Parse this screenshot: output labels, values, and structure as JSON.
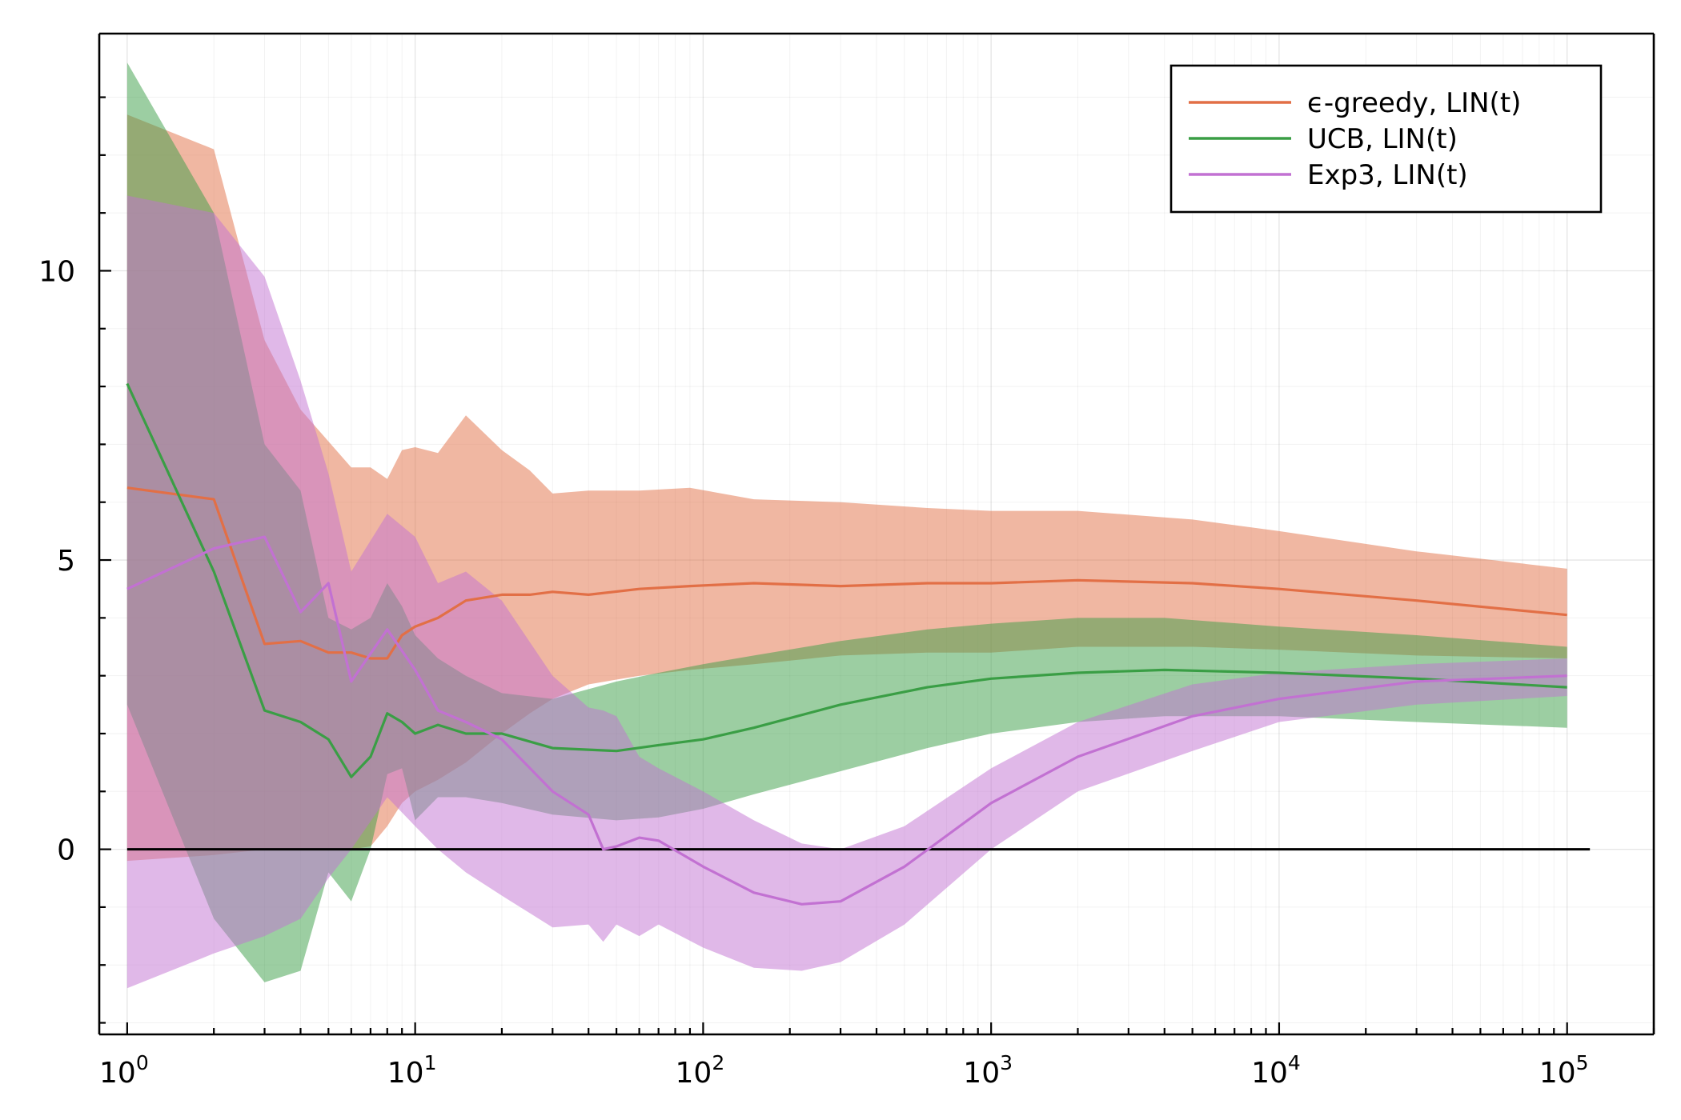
{
  "chart_data": {
    "type": "line",
    "title": "",
    "xlabel": "",
    "ylabel": "",
    "xscale": "log10",
    "xlim": [
      0.8,
      200000
    ],
    "ylim": [
      -3.2,
      14.1
    ],
    "grid": true,
    "legend_position": "top-right",
    "x_ticks": [
      {
        "x": 1,
        "base": "10",
        "exp": "0"
      },
      {
        "x": 10,
        "base": "10",
        "exp": "1"
      },
      {
        "x": 100,
        "base": "10",
        "exp": "2"
      },
      {
        "x": 1000,
        "base": "10",
        "exp": "3"
      },
      {
        "x": 10000,
        "base": "10",
        "exp": "4"
      },
      {
        "x": 100000,
        "base": "10",
        "exp": "5"
      }
    ],
    "y_ticks": [
      {
        "y": 0,
        "label": "0"
      },
      {
        "y": 5,
        "label": "5"
      },
      {
        "y": 10,
        "label": "10"
      }
    ],
    "reference_line": {
      "y": 0,
      "color": "#000000"
    },
    "series": [
      {
        "name": "ϵ-greedy, LIN(t)",
        "color": "#e26f46",
        "x": [
          1,
          2,
          3,
          4,
          5,
          6,
          7,
          8,
          9,
          10,
          12,
          15,
          20,
          25,
          30,
          40,
          60,
          90,
          150,
          300,
          600,
          1000,
          2000,
          5000,
          10000,
          30000,
          100000
        ],
        "y": [
          6.25,
          6.05,
          3.55,
          3.6,
          3.4,
          3.4,
          3.3,
          3.3,
          3.7,
          3.85,
          4.0,
          4.3,
          4.4,
          4.4,
          4.45,
          4.4,
          4.5,
          4.55,
          4.6,
          4.55,
          4.6,
          4.6,
          4.65,
          4.6,
          4.5,
          4.3,
          4.05
        ],
        "upper": [
          12.7,
          12.1,
          8.8,
          7.6,
          7.05,
          6.6,
          6.6,
          6.4,
          6.9,
          6.95,
          6.85,
          7.5,
          6.9,
          6.55,
          6.15,
          6.2,
          6.2,
          6.25,
          6.05,
          6.0,
          5.9,
          5.85,
          5.85,
          5.7,
          5.5,
          5.15,
          4.85
        ],
        "lower": [
          -0.2,
          -0.1,
          0.0,
          0.0,
          0.0,
          0.0,
          0.05,
          0.4,
          0.8,
          1.0,
          1.2,
          1.5,
          2.0,
          2.35,
          2.6,
          2.85,
          3.0,
          3.1,
          3.2,
          3.35,
          3.4,
          3.4,
          3.5,
          3.5,
          3.45,
          3.35,
          3.3
        ]
      },
      {
        "name": "UCB, LIN(t)",
        "color": "#3a9e45",
        "x": [
          1,
          2,
          3,
          4,
          5,
          6,
          7,
          8,
          9,
          10,
          12,
          15,
          20,
          30,
          50,
          70,
          100,
          150,
          300,
          600,
          1000,
          2000,
          4000,
          10000,
          30000,
          100000
        ],
        "y": [
          8.05,
          4.8,
          2.4,
          2.2,
          1.9,
          1.25,
          1.6,
          2.35,
          2.2,
          2.0,
          2.15,
          2.0,
          2.0,
          1.75,
          1.7,
          1.8,
          1.9,
          2.1,
          2.5,
          2.8,
          2.95,
          3.05,
          3.1,
          3.05,
          2.95,
          2.8
        ],
        "upper": [
          13.6,
          11.0,
          7.0,
          6.2,
          4.0,
          3.8,
          4.0,
          4.6,
          4.2,
          3.7,
          3.3,
          3.0,
          2.7,
          2.6,
          2.9,
          3.05,
          3.2,
          3.35,
          3.6,
          3.8,
          3.9,
          4.0,
          4.0,
          3.85,
          3.7,
          3.5
        ],
        "lower": [
          2.5,
          -1.2,
          -2.3,
          -2.1,
          -0.4,
          -0.9,
          0.0,
          1.3,
          1.4,
          0.5,
          0.9,
          0.9,
          0.8,
          0.6,
          0.5,
          0.55,
          0.7,
          0.95,
          1.35,
          1.75,
          2.0,
          2.2,
          2.3,
          2.3,
          2.2,
          2.1
        ]
      },
      {
        "name": "Exp3, LIN(t)",
        "color": "#c271d2",
        "x": [
          1,
          2,
          3,
          4,
          5,
          6,
          8,
          10,
          12,
          15,
          20,
          30,
          40,
          45,
          50,
          60,
          70,
          100,
          150,
          220,
          300,
          500,
          1000,
          2000,
          5000,
          10000,
          30000,
          100000
        ],
        "y": [
          4.5,
          5.2,
          5.4,
          4.1,
          4.6,
          2.9,
          3.8,
          3.1,
          2.4,
          2.2,
          1.9,
          1.0,
          0.6,
          0.0,
          0.05,
          0.2,
          0.15,
          -0.3,
          -0.75,
          -0.95,
          -0.9,
          -0.3,
          0.8,
          1.6,
          2.3,
          2.6,
          2.9,
          3.0
        ],
        "upper": [
          11.3,
          11.0,
          9.9,
          8.1,
          6.5,
          4.8,
          5.8,
          5.4,
          4.6,
          4.8,
          4.3,
          3.0,
          2.45,
          2.4,
          2.3,
          1.6,
          1.4,
          1.0,
          0.5,
          0.1,
          0.0,
          0.4,
          1.4,
          2.2,
          2.85,
          3.05,
          3.2,
          3.3
        ],
        "lower": [
          -2.4,
          -1.8,
          -1.5,
          -1.2,
          -0.5,
          0.0,
          0.9,
          0.4,
          0.0,
          -0.4,
          -0.8,
          -1.35,
          -1.3,
          -1.6,
          -1.3,
          -1.5,
          -1.3,
          -1.7,
          -2.05,
          -2.1,
          -1.95,
          -1.3,
          0.0,
          1.0,
          1.7,
          2.2,
          2.5,
          2.65
        ]
      }
    ]
  }
}
